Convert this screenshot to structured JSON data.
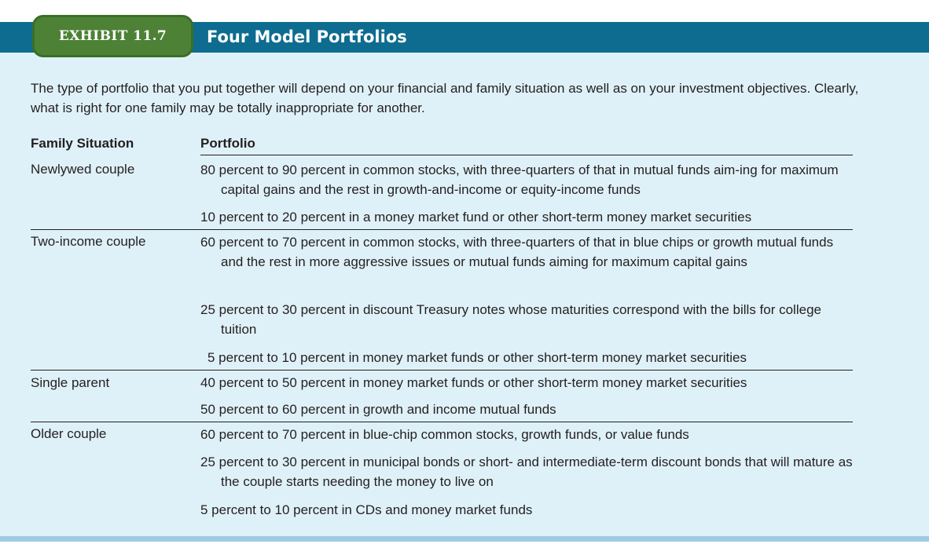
{
  "exhibit": {
    "label": "EXHIBIT 11.7",
    "title": "Four Model Portfolios",
    "intro": "The type of portfolio that you put together will depend on your financial and family situation as well as on your investment objectives. Clearly, what is right for one family may be totally inappropriate for another."
  },
  "table": {
    "headers": {
      "family": "Family Situation",
      "portfolio": "Portfolio"
    },
    "rows": [
      {
        "family": "Newlywed couple",
        "allocations": [
          "80 percent to 90 percent in common stocks, with three-quarters of that in mutual funds aim-ing for maximum capital gains and the rest in growth-and-income or equity-income funds",
          "10 percent to 20 percent in a money market fund or other short-term money market securities"
        ]
      },
      {
        "family": "Two-income couple",
        "allocations": [
          "60 percent to 70 percent in common stocks, with three-quarters of that in blue chips or growth mutual funds and the rest in more aggressive issues or mutual funds aiming for maximum capital gains",
          "25 percent to 30 percent in discount Treasury notes whose maturities correspond with the bills for college tuition",
          "5 percent to 10 percent in money market funds or other short-term money market securities"
        ]
      },
      {
        "family": "Single parent",
        "allocations": [
          "40 percent to 50 percent in money market funds or other short-term money market securities",
          "50 percent to 60 percent in growth and income mutual funds"
        ]
      },
      {
        "family": "Older couple",
        "allocations": [
          "60 percent to 70 percent in blue-chip common stocks, growth funds, or value funds",
          "25 percent to 30 percent in municipal bonds or short- and intermediate-term discount bonds that will mature as the couple starts needing the money to live on",
          "5 percent to 10 percent in CDs and money market funds"
        ]
      }
    ]
  },
  "colors": {
    "header_bar": "#0d6c8f",
    "tab": "#4d8236",
    "panel": "#dff1f8",
    "bottom_band": "#9fcce3"
  }
}
